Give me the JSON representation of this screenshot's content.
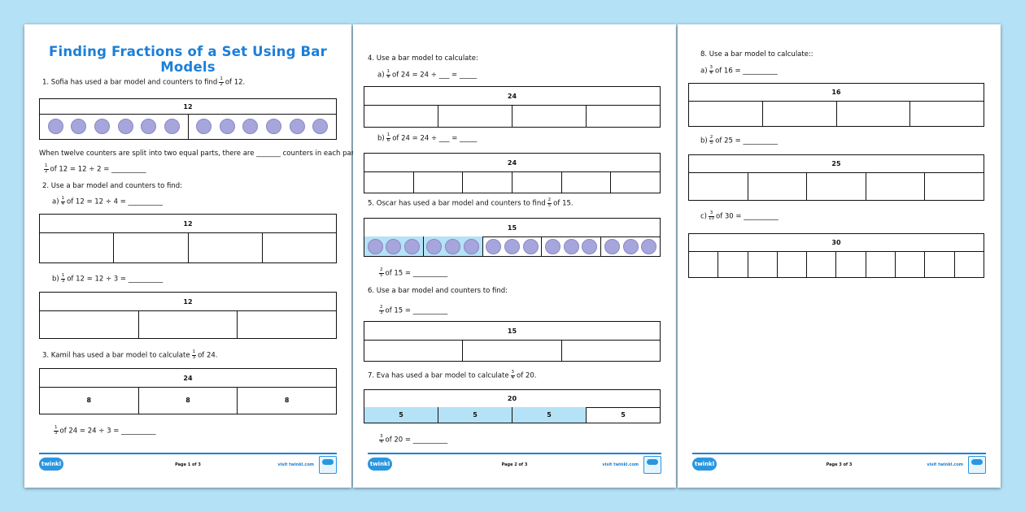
{
  "colors": {
    "background": "#b5e1f6",
    "title": "#1b7fd9",
    "counter": "#a7a6dc",
    "shaded": "#b4e2f6"
  },
  "pages": [
    {
      "title": "Finding Fractions of a Set Using Bar Models",
      "lines": [
        {
          "pre": "1.  Sofia has used a bar model and counters to find",
          "frac": [
            "1",
            "2"
          ],
          "post": "of 12."
        },
        {
          "pre": "When twelve counters are split into two equal parts, there are _______ counters in each part.",
          "post": ""
        },
        {
          "pre": "",
          "frac": [
            "1",
            "2"
          ],
          "post": "of 12 = 12 ÷ 2 = __________"
        },
        {
          "pre": "2.  Use a bar model and counters to find:",
          "post": ""
        },
        {
          "pre": "a)",
          "frac": [
            "1",
            "4"
          ],
          "post": "of 12 = 12 ÷ 4 = __________"
        },
        {
          "pre": "b)",
          "frac": [
            "1",
            "3"
          ],
          "post": "of 12 = 12 ÷ 3 = __________"
        },
        {
          "pre": "3.  Kamil has used a bar model to calculate",
          "frac": [
            "1",
            "3"
          ],
          "post": "of 24."
        },
        {
          "pre": "",
          "frac": [
            "1",
            "3"
          ],
          "post": "of 24 = 24 ÷ 3 = __________"
        }
      ],
      "bars": [
        {
          "total": "12",
          "parts": 2,
          "counters": 6
        },
        {
          "total": "12",
          "parts": 4
        },
        {
          "total": "12",
          "parts": 3
        },
        {
          "total": "24",
          "parts": 3,
          "labels": [
            "8",
            "8",
            "8"
          ]
        }
      ],
      "footer": {
        "logo": "twinkl",
        "page": "Page 1 of 3",
        "site": "visit twinkl.com"
      }
    },
    {
      "lines": [
        {
          "pre": "4.  Use a bar model to calculate:",
          "post": ""
        },
        {
          "pre": "a)",
          "frac": [
            "1",
            "4"
          ],
          "post": "of 24 =  24 ÷ ___ = _____"
        },
        {
          "pre": "b)",
          "frac": [
            "1",
            "6"
          ],
          "post": "of 24 = 24 ÷ ___ = _____"
        },
        {
          "pre": "5.  Oscar has used a bar model and counters to find",
          "frac": [
            "2",
            "5"
          ],
          "post": "of 15."
        },
        {
          "pre": "",
          "frac": [
            "2",
            "5"
          ],
          "post": "of 15 =  __________"
        },
        {
          "pre": "6.  Use a bar model and counters to find:",
          "post": ""
        },
        {
          "pre": "",
          "frac": [
            "2",
            "3"
          ],
          "post": "of 15 = __________"
        },
        {
          "pre": "7.  Eva has used a bar model to calculate",
          "frac": [
            "3",
            "4"
          ],
          "post": "of 20."
        },
        {
          "pre": "",
          "frac": [
            "3",
            "4"
          ],
          "post": "of 20 = __________"
        }
      ],
      "bars": [
        {
          "total": "24",
          "parts": 4
        },
        {
          "total": "24",
          "parts": 6
        },
        {
          "total": "15",
          "parts": 5,
          "counters": 3,
          "shaded": 2
        },
        {
          "total": "15",
          "parts": 3
        },
        {
          "total": "20",
          "parts": 4,
          "labels": [
            "5",
            "5",
            "5",
            "5"
          ],
          "shaded": 3
        }
      ],
      "footer": {
        "logo": "twinkl",
        "page": "Page 2 of 3",
        "site": "visit twinkl.com"
      }
    },
    {
      "lines": [
        {
          "pre": "8.  Use a bar model to calculate::",
          "post": ""
        },
        {
          "pre": "a)",
          "frac": [
            "3",
            "4"
          ],
          "post": "of 16 = __________"
        },
        {
          "pre": "b)",
          "frac": [
            "2",
            "5"
          ],
          "post": "of 25  =  __________"
        },
        {
          "pre": "c)",
          "frac": [
            "3",
            "10"
          ],
          "post": "of 30  =  __________"
        }
      ],
      "bars": [
        {
          "total": "16",
          "parts": 4
        },
        {
          "total": "25",
          "parts": 5
        },
        {
          "total": "30",
          "parts": 10
        }
      ],
      "footer": {
        "logo": "twinkl",
        "page": "Page 3 of 3",
        "site": "visit twinkl.com"
      }
    }
  ]
}
